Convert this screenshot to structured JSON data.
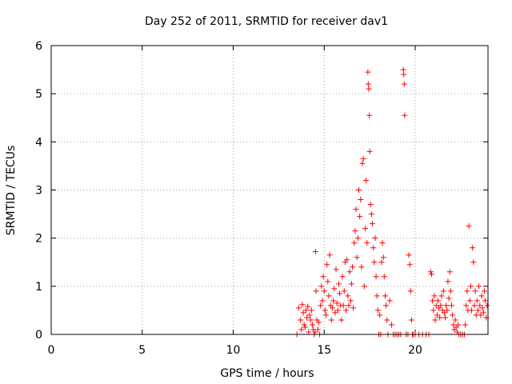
{
  "chart_data": {
    "type": "scatter",
    "title": "Day 252 of 2011, SRMTID for receiver dav1",
    "xlabel": "GPS time / hours",
    "ylabel": "SRMTID / TECUs",
    "xlim": [
      0,
      24
    ],
    "ylim": [
      0,
      6
    ],
    "xticks": [
      0,
      5,
      10,
      15,
      20
    ],
    "yticks": [
      0,
      1,
      2,
      3,
      4,
      5,
      6
    ],
    "grid": true,
    "marker": "+",
    "series": [
      {
        "name": "dav1",
        "color": "#ff0000",
        "points": [
          [
            13.5,
            0.0
          ],
          [
            13.6,
            0.55
          ],
          [
            13.7,
            0.3
          ],
          [
            13.75,
            0.1
          ],
          [
            13.8,
            0.62
          ],
          [
            13.85,
            0.45
          ],
          [
            13.9,
            0.2
          ],
          [
            13.95,
            0.15
          ],
          [
            14.0,
            0.5
          ],
          [
            14.05,
            0.35
          ],
          [
            14.1,
            0.58
          ],
          [
            14.15,
            0.05
          ],
          [
            14.2,
            0.4
          ],
          [
            14.25,
            0.3
          ],
          [
            14.3,
            0.5
          ],
          [
            14.35,
            0.2
          ],
          [
            14.4,
            0.1
          ],
          [
            14.45,
            0.0
          ],
          [
            14.5,
            0.05
          ],
          [
            14.52,
            1.72
          ],
          [
            14.55,
            0.9
          ],
          [
            14.6,
            0.3
          ],
          [
            14.65,
            0.1
          ],
          [
            14.7,
            0.25
          ],
          [
            14.75,
            0.0
          ],
          [
            14.8,
            0.6
          ],
          [
            14.85,
            1.0
          ],
          [
            14.9,
            0.7
          ],
          [
            14.95,
            1.2
          ],
          [
            15.0,
            0.9
          ],
          [
            15.05,
            0.5
          ],
          [
            15.1,
            0.4
          ],
          [
            15.15,
            1.45
          ],
          [
            15.2,
            1.1
          ],
          [
            15.25,
            0.8
          ],
          [
            15.3,
            1.65
          ],
          [
            15.35,
            0.6
          ],
          [
            15.4,
            0.3
          ],
          [
            15.45,
            0.55
          ],
          [
            15.5,
            0.7
          ],
          [
            15.55,
            0.95
          ],
          [
            15.6,
            0.45
          ],
          [
            15.65,
            1.35
          ],
          [
            15.7,
            0.65
          ],
          [
            15.75,
            0.5
          ],
          [
            15.8,
            1.05
          ],
          [
            15.85,
            0.85
          ],
          [
            15.9,
            0.6
          ],
          [
            15.95,
            0.3
          ],
          [
            16.0,
            1.2
          ],
          [
            16.05,
            0.6
          ],
          [
            16.1,
            0.9
          ],
          [
            16.15,
            1.5
          ],
          [
            16.2,
            0.5
          ],
          [
            16.25,
            1.55
          ],
          [
            16.3,
            0.8
          ],
          [
            16.35,
            0.6
          ],
          [
            16.4,
            1.3
          ],
          [
            16.45,
            0.7
          ],
          [
            16.5,
            1.05
          ],
          [
            16.55,
            1.4
          ],
          [
            16.6,
            0.55
          ],
          [
            16.65,
            1.9
          ],
          [
            16.7,
            2.15
          ],
          [
            16.75,
            2.6
          ],
          [
            16.8,
            1.6
          ],
          [
            16.85,
            2.0
          ],
          [
            16.9,
            3.0
          ],
          [
            16.95,
            2.45
          ],
          [
            17.0,
            2.8
          ],
          [
            17.05,
            1.4
          ],
          [
            17.1,
            3.55
          ],
          [
            17.15,
            3.65
          ],
          [
            17.2,
            1.0
          ],
          [
            17.25,
            2.2
          ],
          [
            17.3,
            3.2
          ],
          [
            17.35,
            1.9
          ],
          [
            17.4,
            5.45
          ],
          [
            17.42,
            5.2
          ],
          [
            17.45,
            5.1
          ],
          [
            17.48,
            4.55
          ],
          [
            17.5,
            3.8
          ],
          [
            17.55,
            2.7
          ],
          [
            17.6,
            2.5
          ],
          [
            17.65,
            2.3
          ],
          [
            17.7,
            1.8
          ],
          [
            17.75,
            1.5
          ],
          [
            17.8,
            2.0
          ],
          [
            17.85,
            1.2
          ],
          [
            17.9,
            0.8
          ],
          [
            17.95,
            0.5
          ],
          [
            18.0,
            0.0
          ],
          [
            18.05,
            0.4
          ],
          [
            18.1,
            0.0
          ],
          [
            18.15,
            1.5
          ],
          [
            18.2,
            1.9
          ],
          [
            18.25,
            1.6
          ],
          [
            18.3,
            1.2
          ],
          [
            18.35,
            0.8
          ],
          [
            18.4,
            0.6
          ],
          [
            18.45,
            0.3
          ],
          [
            18.5,
            0.0
          ],
          [
            18.6,
            0.7
          ],
          [
            18.7,
            0.2
          ],
          [
            18.8,
            0.0
          ],
          [
            18.9,
            0.0
          ],
          [
            19.0,
            0.0
          ],
          [
            19.1,
            0.0
          ],
          [
            19.2,
            0.0
          ],
          [
            19.35,
            5.5
          ],
          [
            19.37,
            5.4
          ],
          [
            19.4,
            5.2
          ],
          [
            19.42,
            4.55
          ],
          [
            19.5,
            0.0
          ],
          [
            19.6,
            0.0
          ],
          [
            19.65,
            1.65
          ],
          [
            19.7,
            1.45
          ],
          [
            19.75,
            0.9
          ],
          [
            19.8,
            0.3
          ],
          [
            19.85,
            0.0
          ],
          [
            19.9,
            0.0
          ],
          [
            20.0,
            0.0
          ],
          [
            20.2,
            0.0
          ],
          [
            20.4,
            0.0
          ],
          [
            20.6,
            0.0
          ],
          [
            20.75,
            0.0
          ],
          [
            20.85,
            1.3
          ],
          [
            20.9,
            1.25
          ],
          [
            20.95,
            0.7
          ],
          [
            21.0,
            0.5
          ],
          [
            21.05,
            0.8
          ],
          [
            21.1,
            0.3
          ],
          [
            21.15,
            0.6
          ],
          [
            21.2,
            0.4
          ],
          [
            21.25,
            0.7
          ],
          [
            21.3,
            0.55
          ],
          [
            21.35,
            0.35
          ],
          [
            21.4,
            0.6
          ],
          [
            21.45,
            0.8
          ],
          [
            21.5,
            0.5
          ],
          [
            21.55,
            0.9
          ],
          [
            21.6,
            0.45
          ],
          [
            21.65,
            0.35
          ],
          [
            21.7,
            0.6
          ],
          [
            21.75,
            0.5
          ],
          [
            21.8,
            1.1
          ],
          [
            21.85,
            0.75
          ],
          [
            21.9,
            1.3
          ],
          [
            21.95,
            0.9
          ],
          [
            22.0,
            0.6
          ],
          [
            22.05,
            0.4
          ],
          [
            22.1,
            0.2
          ],
          [
            22.15,
            0.1
          ],
          [
            22.2,
            0.3
          ],
          [
            22.25,
            0.15
          ],
          [
            22.3,
            0.05
          ],
          [
            22.35,
            0.2
          ],
          [
            22.4,
            0.0
          ],
          [
            22.5,
            0.0
          ],
          [
            22.6,
            0.0
          ],
          [
            22.7,
            0.0
          ],
          [
            22.75,
            0.2
          ],
          [
            22.8,
            0.6
          ],
          [
            22.85,
            0.9
          ],
          [
            22.9,
            0.5
          ],
          [
            22.95,
            2.25
          ],
          [
            23.0,
            0.7
          ],
          [
            23.05,
            1.0
          ],
          [
            23.1,
            0.5
          ],
          [
            23.15,
            1.8
          ],
          [
            23.2,
            1.5
          ],
          [
            23.25,
            0.6
          ],
          [
            23.3,
            0.9
          ],
          [
            23.35,
            0.4
          ],
          [
            23.4,
            0.7
          ],
          [
            23.45,
            0.5
          ],
          [
            23.5,
            1.0
          ],
          [
            23.55,
            0.6
          ],
          [
            23.6,
            0.4
          ],
          [
            23.65,
            0.8
          ],
          [
            23.7,
            0.55
          ],
          [
            23.75,
            0.45
          ],
          [
            23.8,
            0.9
          ],
          [
            23.85,
            0.7
          ],
          [
            23.9,
            0.35
          ],
          [
            23.95,
            0.6
          ]
        ]
      }
    ]
  }
}
